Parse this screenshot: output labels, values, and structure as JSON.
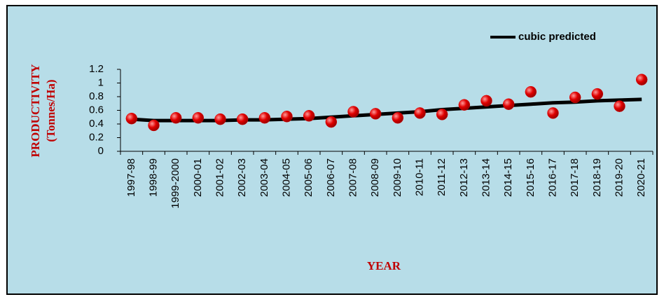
{
  "chart_data": {
    "type": "line",
    "x_label": "YEAR",
    "y_label": [
      "PRODUCTIVITY",
      "(Tonnes/Ha)"
    ],
    "categories": [
      "1997-98",
      "1998-99",
      "1999-2000",
      "2000-01",
      "2001-02",
      "2002-03",
      "2003-04",
      "2004-05",
      "2005-06",
      "2006-07",
      "2007-08",
      "2008-09",
      "2009-10",
      "2010-11",
      "2011-12",
      "2012-13",
      "2013-14",
      "2014-15",
      "2015-16",
      "2016-17",
      "2017-18",
      "2018-19",
      "2019-20",
      "2020-21"
    ],
    "series": [
      {
        "mode": "markers",
        "color": "#e00000",
        "values": [
          0.48,
          0.38,
          0.49,
          0.49,
          0.47,
          0.47,
          0.49,
          0.51,
          0.52,
          0.43,
          0.58,
          0.55,
          0.49,
          0.56,
          0.54,
          0.68,
          0.74,
          0.69,
          0.87,
          0.56,
          0.79,
          0.84,
          0.66,
          1.05
        ]
      },
      {
        "name": "cubic predicted",
        "mode": "line",
        "color": "#000000",
        "values": [
          0.47,
          0.45,
          0.45,
          0.45,
          0.45,
          0.46,
          0.46,
          0.47,
          0.48,
          0.5,
          0.52,
          0.54,
          0.56,
          0.58,
          0.61,
          0.63,
          0.65,
          0.67,
          0.69,
          0.71,
          0.72,
          0.74,
          0.75,
          0.76
        ]
      }
    ],
    "ylim": [
      0,
      1.2
    ],
    "yticks": [
      0,
      0.2,
      0.4,
      0.6,
      0.8,
      1,
      1.2
    ],
    "grid": false,
    "legend": "upper right"
  }
}
